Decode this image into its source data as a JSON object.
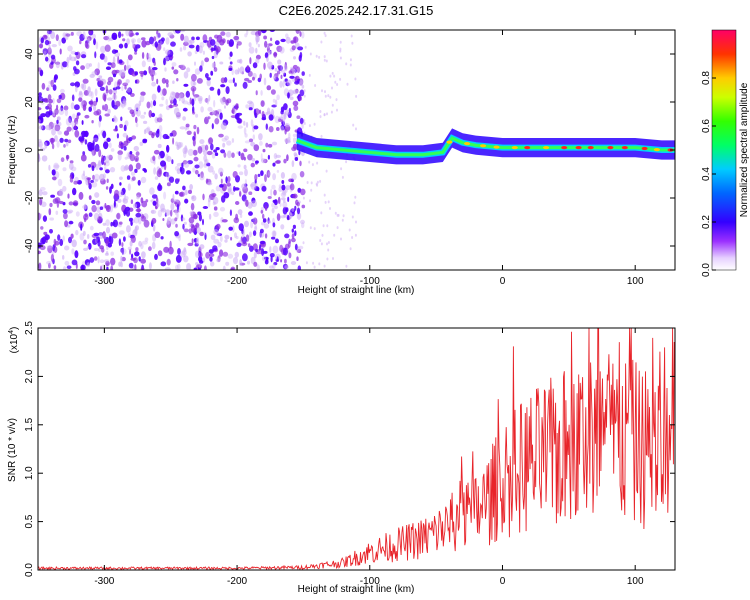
{
  "title": "C2E6.2025.242.17.31.G15",
  "colors": {
    "snr_line": "#e8242a",
    "background_dots": "#8a2be2",
    "axis": "#000000"
  },
  "chart_data": [
    {
      "type": "heatmap",
      "name": "spectrogram",
      "xlabel": "Height of straight line (km)",
      "ylabel": "Frequency (Hz)",
      "xlim": [
        -350,
        130
      ],
      "ylim": [
        -50,
        50
      ],
      "x_ticks": [
        -300,
        -200,
        -100,
        0,
        100
      ],
      "y_ticks": [
        -40,
        -20,
        0,
        20,
        40
      ],
      "colorbar": {
        "label": "Normalized spectral amplitude",
        "range": [
          0,
          1
        ],
        "ticks": [
          "0.0",
          "0.2",
          "0.4",
          "0.6",
          "0.8"
        ],
        "tick_values": [
          0.0,
          0.2,
          0.4,
          0.6,
          0.8
        ]
      },
      "signal_track": {
        "description": "dominant frequency ridge",
        "x": [
          -155,
          -140,
          -120,
          -100,
          -80,
          -60,
          -45,
          -38,
          -30,
          -20,
          0,
          20,
          40,
          60,
          80,
          100,
          120,
          130
        ],
        "freq": [
          4,
          1,
          0,
          -1,
          -2,
          -2,
          -1,
          5,
          3,
          2,
          1,
          1,
          1,
          1,
          1,
          1,
          0,
          0
        ]
      }
    },
    {
      "type": "line",
      "name": "snr",
      "xlabel": "Height of straight line (km)",
      "ylabel": "SNR (10 * v/v)",
      "y_multiplier": "(x10",
      "y_multiplier_exp": "4",
      "y_multiplier_close": ")",
      "xlim": [
        -350,
        130
      ],
      "ylim": [
        0,
        2.5
      ],
      "x_ticks": [
        -300,
        -200,
        -100,
        0,
        100
      ],
      "y_ticks": [
        "0.0",
        "0.5",
        "1.0",
        "1.5",
        "2.0",
        "2.5"
      ],
      "y_tick_values": [
        0.0,
        0.5,
        1.0,
        1.5,
        2.0,
        2.5
      ],
      "series": [
        {
          "name": "SNR",
          "envelope_x": [
            -350,
            -300,
            -250,
            -200,
            -150,
            -120,
            -100,
            -80,
            -60,
            -40,
            -30,
            -20,
            -10,
            0,
            10,
            20,
            40,
            60,
            80,
            100,
            120,
            130
          ],
          "envelope_y": [
            0.02,
            0.02,
            0.02,
            0.02,
            0.03,
            0.08,
            0.2,
            0.28,
            0.35,
            0.5,
            0.6,
            0.65,
            0.8,
            1.0,
            1.1,
            1.2,
            1.3,
            1.45,
            1.5,
            1.4,
            1.3,
            1.25
          ],
          "peak_y": 2.5,
          "peak_x": 72
        }
      ]
    }
  ]
}
